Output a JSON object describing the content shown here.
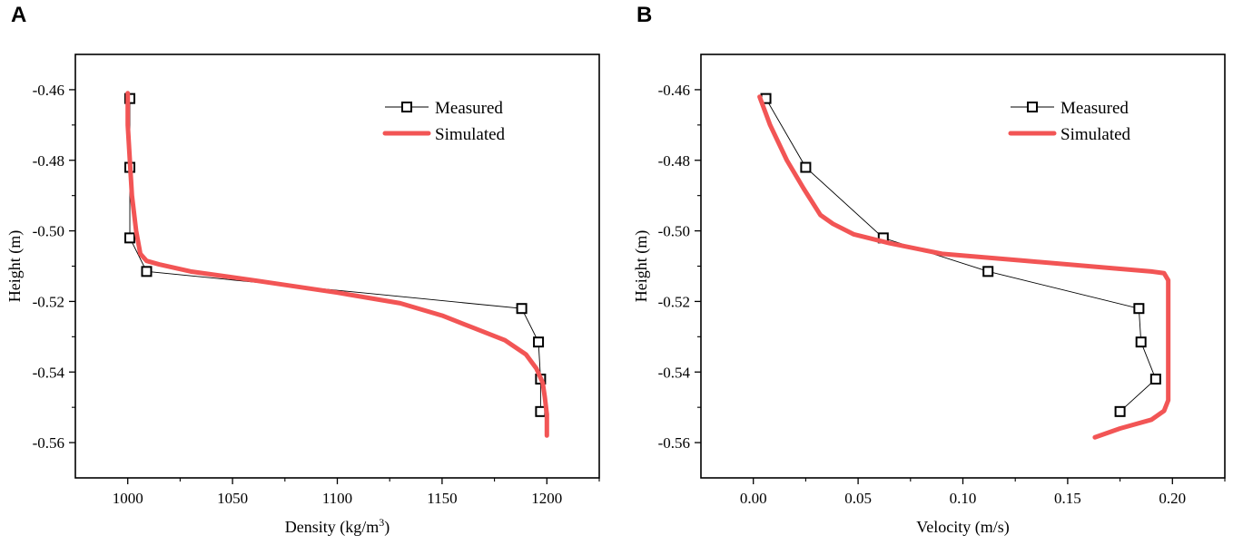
{
  "chart_data": [
    {
      "type": "line",
      "panel_label": "A",
      "xlabel": "Density (kg/m",
      "xlabel_sup": "3",
      "xlabel_end": ")",
      "ylabel": "Height (m)",
      "xlim": [
        975,
        1225
      ],
      "ylim": [
        -0.57,
        -0.45
      ],
      "xticks": [
        1000,
        1050,
        1100,
        1150,
        1200
      ],
      "xtick_labels": [
        "1000",
        "1050",
        "1100",
        "1150",
        "1200"
      ],
      "yticks": [
        -0.46,
        -0.48,
        -0.5,
        -0.52,
        -0.54,
        -0.56
      ],
      "ytick_labels": [
        "-0.46",
        "-0.48",
        "-0.50",
        "-0.52",
        "-0.54",
        "-0.56"
      ],
      "legend_position": "top-right",
      "series": [
        {
          "name": "Measured",
          "style": "marker-line",
          "color": "#000000",
          "x": [
            1001,
            1001,
            1001,
            1009,
            1188,
            1196,
            1197,
            1197
          ],
          "y": [
            -0.4625,
            -0.482,
            -0.502,
            -0.5115,
            -0.522,
            -0.5315,
            -0.542,
            -0.5512
          ]
        },
        {
          "name": "Simulated",
          "style": "thick-line",
          "color": "#f25555",
          "x": [
            1000,
            1000,
            1001,
            1002,
            1004,
            1006,
            1009,
            1015,
            1030,
            1060,
            1100,
            1130,
            1150,
            1165,
            1180,
            1190,
            1195,
            1198,
            1199,
            1200,
            1200
          ],
          "y": [
            -0.461,
            -0.47,
            -0.48,
            -0.49,
            -0.5,
            -0.5065,
            -0.5085,
            -0.5095,
            -0.5115,
            -0.514,
            -0.5175,
            -0.5205,
            -0.524,
            -0.5275,
            -0.531,
            -0.535,
            -0.539,
            -0.543,
            -0.547,
            -0.552,
            -0.558
          ]
        }
      ]
    },
    {
      "type": "line",
      "panel_label": "B",
      "xlabel": "Velocity (m/s)",
      "ylabel": "Height (m)",
      "xlim": [
        -0.025,
        0.225
      ],
      "ylim": [
        -0.57,
        -0.45
      ],
      "xticks": [
        0,
        0.05,
        0.1,
        0.15,
        0.2
      ],
      "xtick_labels": [
        "0.00",
        "0.05",
        "0.10",
        "0.15",
        "0.20"
      ],
      "yticks": [
        -0.46,
        -0.48,
        -0.5,
        -0.52,
        -0.54,
        -0.56
      ],
      "ytick_labels": [
        "-0.46",
        "-0.48",
        "-0.50",
        "-0.52",
        "-0.54",
        "-0.56"
      ],
      "legend_position": "top-right",
      "series": [
        {
          "name": "Measured",
          "style": "marker-line",
          "color": "#000000",
          "x": [
            0.006,
            0.025,
            0.062,
            0.112,
            0.184,
            0.185,
            0.192,
            0.175
          ],
          "y": [
            -0.4625,
            -0.482,
            -0.502,
            -0.5115,
            -0.522,
            -0.5315,
            -0.542,
            -0.5512
          ]
        },
        {
          "name": "Simulated",
          "style": "thick-line",
          "color": "#f25555",
          "x": [
            0.003,
            0.008,
            0.016,
            0.024,
            0.032,
            0.038,
            0.048,
            0.065,
            0.09,
            0.13,
            0.17,
            0.19,
            0.196,
            0.198,
            0.198,
            0.198,
            0.198,
            0.196,
            0.19,
            0.175,
            0.163
          ],
          "y": [
            -0.462,
            -0.47,
            -0.48,
            -0.488,
            -0.4955,
            -0.498,
            -0.501,
            -0.5035,
            -0.5065,
            -0.5085,
            -0.5105,
            -0.5115,
            -0.512,
            -0.514,
            -0.52,
            -0.54,
            -0.548,
            -0.551,
            -0.5535,
            -0.556,
            -0.5585
          ]
        }
      ]
    }
  ]
}
